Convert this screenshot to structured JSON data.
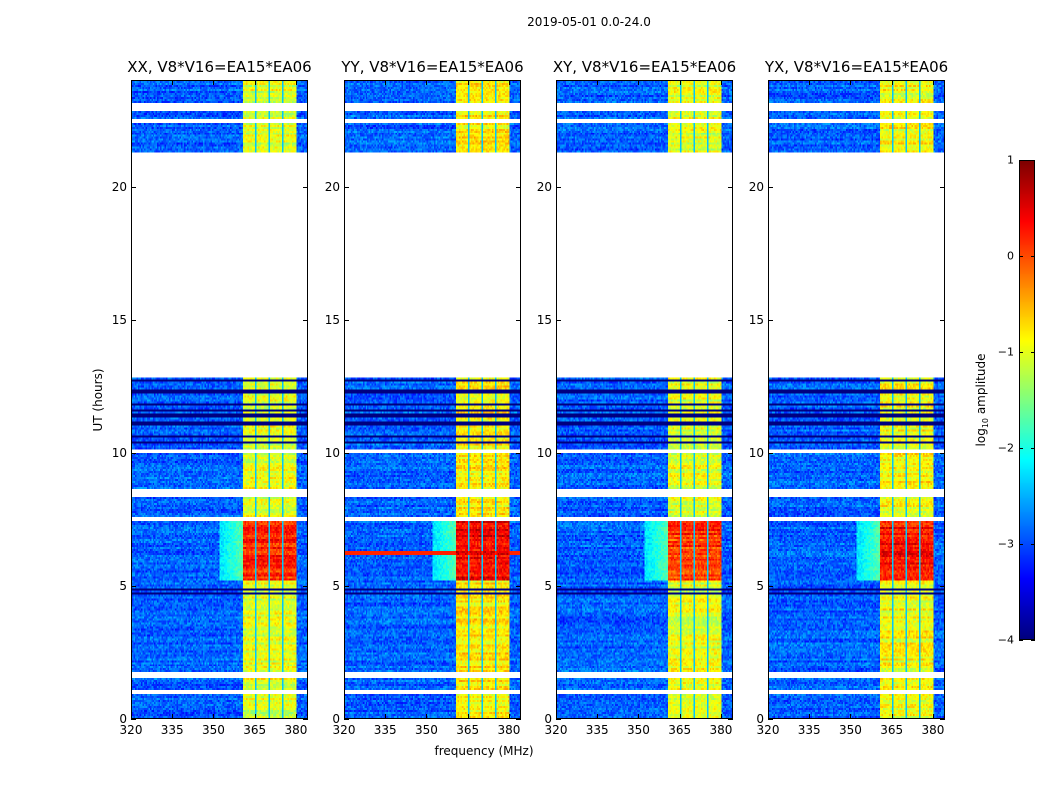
{
  "chart_data": {
    "type": "heatmap",
    "suptitle": "2019-05-01 0.0-24.0",
    "xlabel": "frequency (MHz)",
    "ylabel": "UT (hours)",
    "xlim": [
      320,
      384.4
    ],
    "ylim": [
      0,
      24
    ],
    "xticks": [
      "320",
      "335",
      "350",
      "365",
      "380"
    ],
    "xtick_values": [
      320,
      335,
      350,
      365,
      380
    ],
    "yticks": [
      "0",
      "5",
      "10",
      "15",
      "20"
    ],
    "ytick_values": [
      0,
      5,
      10,
      15,
      20
    ],
    "panels": [
      {
        "title": "XX, V8*V16=EA15*EA06",
        "band_level": -1.0,
        "strong_level": 0.2,
        "rfi_line": false
      },
      {
        "title": "YY, V8*V16=EA15*EA06",
        "band_level": -0.8,
        "strong_level": 0.4,
        "rfi_line": true
      },
      {
        "title": "XY, V8*V16=EA15*EA06",
        "band_level": -1.0,
        "strong_level": 0.1,
        "rfi_line": false
      },
      {
        "title": "YX, V8*V16=EA15*EA06",
        "band_level": -0.9,
        "strong_level": 0.3,
        "rfi_line": false
      }
    ],
    "background_level": -2.9,
    "band_mhz": [
      361,
      380.5
    ],
    "subband_edges_mhz": [
      365.5,
      370.5,
      375.5
    ],
    "strong_hours": [
      5.2,
      7.4
    ],
    "rfi_line_hour": 6.2,
    "flagged_hours": [
      [
        12.85,
        21.3
      ],
      [
        22.9,
        23.15
      ],
      [
        22.45,
        22.55
      ],
      [
        9.95,
        10.1
      ],
      [
        8.3,
        8.6
      ],
      [
        7.45,
        7.6
      ],
      [
        1.5,
        1.7
      ],
      [
        0.9,
        1.05
      ]
    ],
    "dark_rows_hours": [
      12.7,
      12.3,
      11.8,
      11.6,
      11.4,
      11.1,
      10.6,
      10.4,
      4.85,
      4.7
    ],
    "colorbar": {
      "label_prefix": "log",
      "label_sub": "10",
      "label_suffix": " amplitude",
      "range": [
        -4,
        1
      ],
      "ticks": [
        "1",
        "0",
        "−1",
        "−2",
        "−3",
        "−4"
      ],
      "tick_values": [
        1,
        0,
        -1,
        -2,
        -3,
        -4
      ],
      "colormap": "jet"
    }
  }
}
